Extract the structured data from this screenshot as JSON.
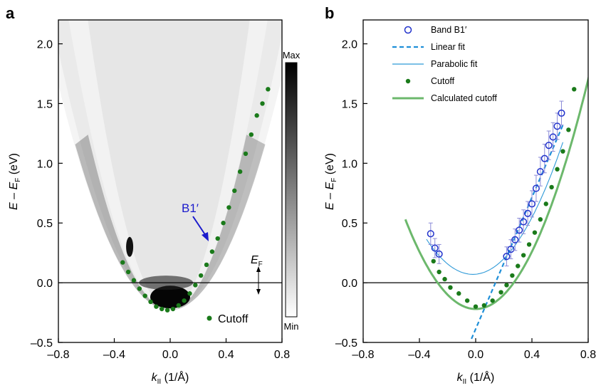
{
  "chart_data": [
    {
      "type": "heatmap",
      "panel_label": "a",
      "xlabel": "k",
      "xlabel_sub": "II",
      "xlabel_unit": " (1/Å)",
      "ylabel": "E – E",
      "ylabel_sub": "F",
      "ylabel_unit": " (eV)",
      "xlim": [
        -0.8,
        0.8
      ],
      "ylim": [
        -0.5,
        2.2
      ],
      "xticks": [
        -0.8,
        -0.4,
        0.0,
        0.4,
        0.8
      ],
      "yticks": [
        -0.5,
        0.0,
        0.5,
        1.0,
        1.5,
        2.0
      ],
      "colorbar": {
        "max_label": "Max",
        "min_label": "Min"
      },
      "annotations": {
        "band_label": "B1′",
        "fermi_label": "E",
        "fermi_sub": "F"
      },
      "legend": [
        {
          "label": "Cutoff",
          "color": "#1a7a1a"
        }
      ],
      "cutoff_points": {
        "x": [
          -0.34,
          -0.3,
          -0.26,
          -0.22,
          -0.18,
          -0.14,
          -0.1,
          -0.06,
          -0.02,
          0.02,
          0.06,
          0.1,
          0.14,
          0.18,
          0.22,
          0.26,
          0.3,
          0.34,
          0.38,
          0.42,
          0.46,
          0.5,
          0.54,
          0.58,
          0.62,
          0.66,
          0.7
        ],
        "y": [
          0.17,
          0.09,
          0.02,
          -0.05,
          -0.11,
          -0.16,
          -0.2,
          -0.22,
          -0.23,
          -0.22,
          -0.19,
          -0.15,
          -0.09,
          -0.02,
          0.06,
          0.15,
          0.26,
          0.37,
          0.5,
          0.63,
          0.77,
          0.93,
          1.08,
          1.24,
          1.4,
          1.5,
          1.62
        ]
      }
    },
    {
      "type": "scatter",
      "panel_label": "b",
      "xlabel": "k",
      "xlabel_sub": "II",
      "xlabel_unit": " (1/Å)",
      "ylabel": "E – E",
      "ylabel_sub": "F",
      "ylabel_unit": " (eV)",
      "xlim": [
        -0.8,
        0.8
      ],
      "ylim": [
        -0.5,
        2.2
      ],
      "xticks": [
        -0.8,
        -0.4,
        0.0,
        0.4,
        0.8
      ],
      "yticks": [
        -0.5,
        0.0,
        0.5,
        1.0,
        1.5,
        2.0
      ],
      "legend_position": "top-left",
      "colors": {
        "band": "#2233cc",
        "linear": "#1f8fd8",
        "parabolic": "#2f9ad8",
        "cutoff": "#1a7a1a",
        "calc": "#6cb86c"
      },
      "series": [
        {
          "name": "Band B1′",
          "kind": "open-circles",
          "x": [
            -0.32,
            -0.29,
            -0.26,
            0.22,
            0.25,
            0.28,
            0.31,
            0.34,
            0.37,
            0.4,
            0.43,
            0.46,
            0.49,
            0.52,
            0.55,
            0.58,
            0.61
          ],
          "y": [
            0.41,
            0.29,
            0.24,
            0.22,
            0.28,
            0.36,
            0.44,
            0.51,
            0.58,
            0.66,
            0.79,
            0.93,
            1.04,
            1.15,
            1.22,
            1.31,
            1.42
          ],
          "err": [
            0.09,
            0.08,
            0.08,
            0.08,
            0.08,
            0.09,
            0.1,
            0.1,
            0.1,
            0.11,
            0.11,
            0.12,
            0.12,
            0.12,
            0.12,
            0.11,
            0.1
          ]
        },
        {
          "name": "Linear fit",
          "kind": "dashed-line",
          "x": [
            -0.03,
            0.62
          ],
          "y": [
            -0.47,
            1.32
          ]
        },
        {
          "name": "Parabolic fit",
          "kind": "thin-line",
          "a": 2.7,
          "x0": -0.02,
          "y0": 0.07,
          "x_range": [
            -0.35,
            0.62
          ]
        },
        {
          "name": "Cutoff",
          "kind": "filled-dots",
          "x": [
            -0.3,
            -0.26,
            -0.22,
            -0.18,
            -0.12,
            -0.06,
            0.0,
            0.06,
            0.12,
            0.18,
            0.22,
            0.26,
            0.3,
            0.34,
            0.38,
            0.42,
            0.46,
            0.5,
            0.54,
            0.58,
            0.62,
            0.66,
            0.7
          ],
          "y": [
            0.18,
            0.09,
            0.03,
            -0.04,
            -0.09,
            -0.15,
            -0.2,
            -0.19,
            -0.15,
            -0.08,
            -0.02,
            0.06,
            0.14,
            0.23,
            0.32,
            0.42,
            0.53,
            0.66,
            0.8,
            0.95,
            1.1,
            1.28,
            1.62
          ]
        },
        {
          "name": "Calculated cutoff",
          "kind": "thick-line",
          "a": 3.0,
          "x0": 0.0,
          "y0": -0.22,
          "x_range": [
            -0.5,
            0.86
          ]
        }
      ]
    }
  ]
}
